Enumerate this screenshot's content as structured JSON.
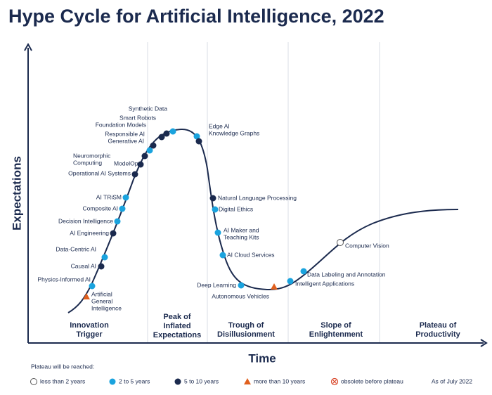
{
  "title": "Hype Cycle for Artificial Intelligence, 2022",
  "axes": {
    "y_label": "Expectations",
    "x_label": "Time"
  },
  "phases": [
    {
      "lines": [
        "Innovation",
        "Trigger"
      ]
    },
    {
      "lines": [
        "Peak of",
        "Inflated",
        "Expectations"
      ]
    },
    {
      "lines": [
        "Trough of",
        "Disillusionment"
      ]
    },
    {
      "lines": [
        "Slope of",
        "Enlightenment"
      ]
    },
    {
      "lines": [
        "Plateau of",
        "Productivity"
      ]
    }
  ],
  "technologies": [
    {
      "label": [
        "Artificial",
        "General",
        "Intelligence"
      ],
      "plateau": 3
    },
    {
      "label": [
        "Physics-Informed AI"
      ],
      "plateau": 1
    },
    {
      "label": [
        "Causal AI"
      ],
      "plateau": 2
    },
    {
      "label": [
        "Data-Centric AI"
      ],
      "plateau": 1
    },
    {
      "label": [
        "AI Engineering"
      ],
      "plateau": 2
    },
    {
      "label": [
        "Decision Intelligence"
      ],
      "plateau": 1
    },
    {
      "label": [
        "Composite AI"
      ],
      "plateau": 1
    },
    {
      "label": [
        "AI TRiSM"
      ],
      "plateau": 1
    },
    {
      "label": [
        "Operational AI Systems"
      ],
      "plateau": 2
    },
    {
      "label": [
        "Neuromorphic",
        "Computing"
      ],
      "plateau": 2
    },
    {
      "label": [
        "ModelOps"
      ],
      "plateau": 2
    },
    {
      "label": [
        "Generative AI"
      ],
      "plateau": 1
    },
    {
      "label": [
        "Responsible AI"
      ],
      "plateau": 2
    },
    {
      "label": [
        "Foundation Models"
      ],
      "plateau": 2
    },
    {
      "label": [
        "Smart Robots"
      ],
      "plateau": 2
    },
    {
      "label": [
        "Synthetic Data"
      ],
      "plateau": 1
    },
    {
      "label": [
        "Edge AI"
      ],
      "plateau": 1
    },
    {
      "label": [
        "Knowledge Graphs"
      ],
      "plateau": 2
    },
    {
      "label": [
        "Natural Language Processing"
      ],
      "plateau": 2
    },
    {
      "label": [
        "Digital Ethics"
      ],
      "plateau": 1
    },
    {
      "label": [
        "AI Maker and",
        "Teaching Kits"
      ],
      "plateau": 1
    },
    {
      "label": [
        "AI Cloud Services"
      ],
      "plateau": 1
    },
    {
      "label": [
        "Deep Learning"
      ],
      "plateau": 1
    },
    {
      "label": [
        "Autonomous Vehicles"
      ],
      "plateau": 3
    },
    {
      "label": [
        "Intelligent Applications"
      ],
      "plateau": 1
    },
    {
      "label": [
        "Data Labeling and Annotation"
      ],
      "plateau": 1
    },
    {
      "label": [
        "Computer Vision"
      ],
      "plateau": 0
    }
  ],
  "legend": {
    "title": "Plateau will be reached:",
    "items": [
      "less than 2 years",
      "2 to 5 years",
      "5 to 10 years",
      "more than 10 years",
      "obsolete before plateau"
    ]
  },
  "as_of": "As of July 2022"
}
